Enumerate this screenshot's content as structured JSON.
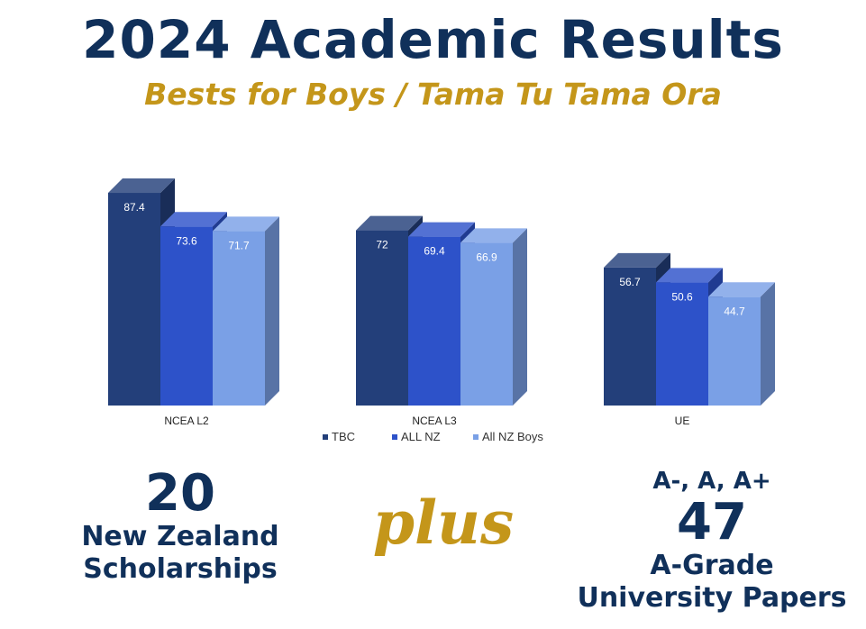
{
  "header": {
    "title": "2024 Academic Results",
    "subtitle": "Bests for Boys / Tama Tu Tama Ora"
  },
  "chart_data": {
    "type": "bar",
    "categories": [
      "NCEA L2",
      "NCEA L3",
      "UE"
    ],
    "series": [
      {
        "name": "TBC",
        "values": [
          87.4,
          72,
          56.7
        ],
        "color": "#233f7a"
      },
      {
        "name": "ALL NZ",
        "values": [
          73.6,
          69.4,
          50.6
        ],
        "color": "#2d52c9"
      },
      {
        "name": "All NZ Boys",
        "values": [
          71.7,
          66.9,
          44.7
        ],
        "color": "#7aa0e6"
      }
    ],
    "ylim": [
      0,
      100
    ],
    "legend_position": "bottom",
    "grid": false,
    "style": "3d"
  },
  "left_stat": {
    "number": "20",
    "line1": "New Zealand",
    "line2": "Scholarships"
  },
  "middle": {
    "plus": "plus"
  },
  "right_stat": {
    "grades": "A-, A,  A+",
    "number": "47",
    "line1": "A-Grade",
    "line2": "University Papers"
  }
}
